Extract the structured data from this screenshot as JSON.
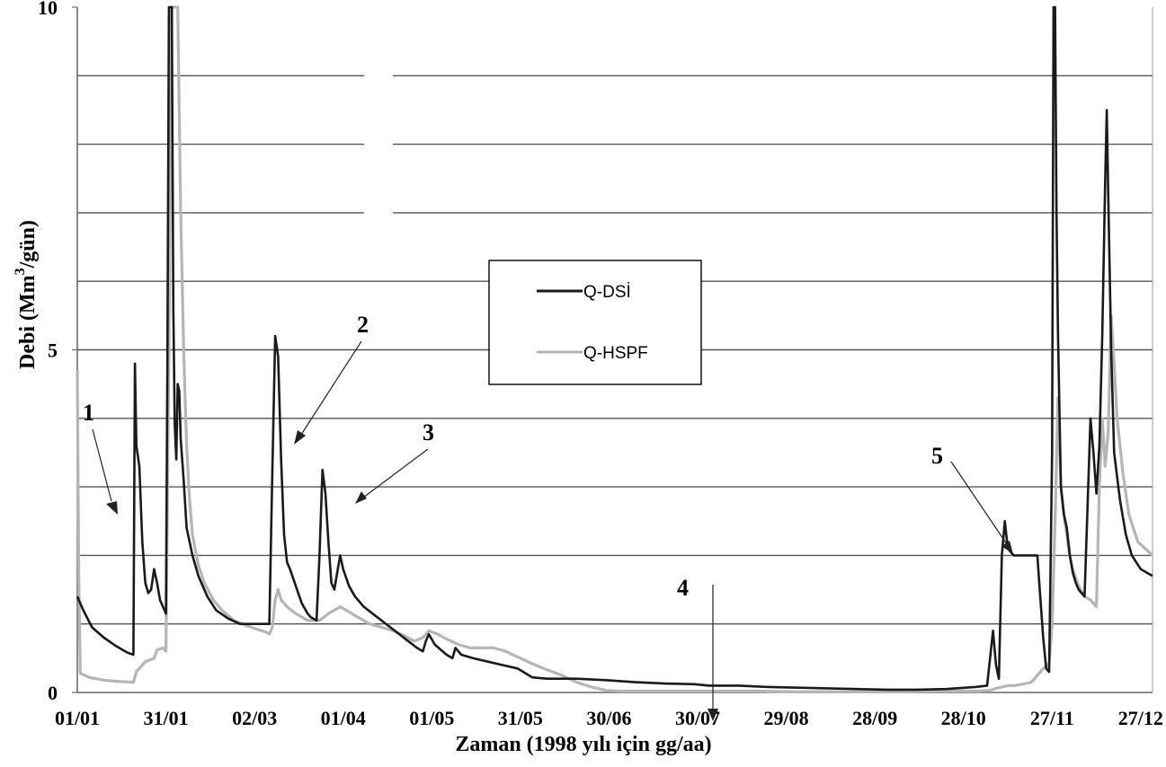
{
  "chart_data": {
    "type": "line",
    "title": "",
    "xlabel": "Zaman (1998 yılı için gg/aa)",
    "ylabel_main": "Debi (Mm",
    "ylabel_sup": "3",
    "ylabel_tail": "/gün)",
    "xlim": [
      1,
      365
    ],
    "ylim": [
      0,
      10
    ],
    "grid": true,
    "legend_position": "center",
    "y_ticks": [
      {
        "value": 0,
        "label": "0"
      },
      {
        "value": 5,
        "label": "5"
      },
      {
        "value": 10,
        "label": "10"
      }
    ],
    "y_gridlines": [
      1,
      2,
      3,
      4,
      5,
      6,
      7,
      8,
      9
    ],
    "x_ticks": [
      {
        "day": 1,
        "label": "01/01"
      },
      {
        "day": 31,
        "label": "31/01"
      },
      {
        "day": 61,
        "label": "02/03"
      },
      {
        "day": 91,
        "label": "01/04"
      },
      {
        "day": 121,
        "label": "01/05"
      },
      {
        "day": 151,
        "label": "31/05"
      },
      {
        "day": 181,
        "label": "30/06"
      },
      {
        "day": 211,
        "label": "30/07"
      },
      {
        "day": 241,
        "label": "29/08"
      },
      {
        "day": 271,
        "label": "28/09"
      },
      {
        "day": 301,
        "label": "28/10"
      },
      {
        "day": 331,
        "label": "27/11"
      },
      {
        "day": 361,
        "label": "27/12"
      }
    ],
    "series": [
      {
        "name": "Q-DSİ",
        "color": "#1a1a1a",
        "points": [
          [
            1,
            1.4
          ],
          [
            3,
            1.2
          ],
          [
            6,
            0.95
          ],
          [
            10,
            0.8
          ],
          [
            14,
            0.68
          ],
          [
            18,
            0.58
          ],
          [
            20,
            0.55
          ],
          [
            20.5,
            4.8
          ],
          [
            21,
            3.6
          ],
          [
            22,
            3.3
          ],
          [
            23,
            2.2
          ],
          [
            24,
            1.6
          ],
          [
            25,
            1.45
          ],
          [
            26,
            1.5
          ],
          [
            27,
            1.8
          ],
          [
            28,
            1.6
          ],
          [
            29,
            1.35
          ],
          [
            30,
            1.25
          ],
          [
            31,
            1.15
          ],
          [
            31.5,
            4.8
          ],
          [
            32,
            10
          ],
          [
            33,
            10
          ],
          [
            33.5,
            5.6
          ],
          [
            34,
            3.9
          ],
          [
            34.5,
            3.4
          ],
          [
            35,
            4.5
          ],
          [
            35.5,
            4.4
          ],
          [
            36,
            3.7
          ],
          [
            37,
            3.1
          ],
          [
            38,
            2.4
          ],
          [
            40,
            2.0
          ],
          [
            42,
            1.7
          ],
          [
            45,
            1.4
          ],
          [
            48,
            1.2
          ],
          [
            52,
            1.08
          ],
          [
            56,
            1.0
          ],
          [
            60,
            1.0
          ],
          [
            62,
            1.0
          ],
          [
            66,
            1.0
          ],
          [
            67,
            3.2
          ],
          [
            68,
            5.2
          ],
          [
            69,
            4.9
          ],
          [
            70,
            3.4
          ],
          [
            71,
            2.3
          ],
          [
            72,
            1.9
          ],
          [
            73,
            1.8
          ],
          [
            75,
            1.55
          ],
          [
            77,
            1.3
          ],
          [
            79,
            1.15
          ],
          [
            80,
            1.1
          ],
          [
            82,
            1.05
          ],
          [
            83,
            2.0
          ],
          [
            84,
            3.25
          ],
          [
            85,
            2.9
          ],
          [
            86,
            2.2
          ],
          [
            87,
            1.6
          ],
          [
            88,
            1.5
          ],
          [
            89,
            1.75
          ],
          [
            90,
            2.0
          ],
          [
            91,
            1.8
          ],
          [
            93,
            1.55
          ],
          [
            95,
            1.4
          ],
          [
            98,
            1.25
          ],
          [
            101,
            1.15
          ],
          [
            104,
            1.05
          ],
          [
            107,
            0.95
          ],
          [
            110,
            0.85
          ],
          [
            113,
            0.75
          ],
          [
            116,
            0.65
          ],
          [
            118,
            0.6
          ],
          [
            119,
            0.75
          ],
          [
            120,
            0.85
          ],
          [
            122,
            0.7
          ],
          [
            126,
            0.55
          ],
          [
            128,
            0.5
          ],
          [
            129,
            0.65
          ],
          [
            131,
            0.55
          ],
          [
            135,
            0.5
          ],
          [
            140,
            0.45
          ],
          [
            145,
            0.4
          ],
          [
            150,
            0.35
          ],
          [
            152,
            0.3
          ],
          [
            155,
            0.22
          ],
          [
            160,
            0.2
          ],
          [
            170,
            0.2
          ],
          [
            180,
            0.18
          ],
          [
            190,
            0.15
          ],
          [
            200,
            0.13
          ],
          [
            210,
            0.12
          ],
          [
            215,
            0.1
          ],
          [
            225,
            0.1
          ],
          [
            235,
            0.08
          ],
          [
            245,
            0.07
          ],
          [
            255,
            0.06
          ],
          [
            265,
            0.05
          ],
          [
            275,
            0.04
          ],
          [
            285,
            0.04
          ],
          [
            295,
            0.05
          ],
          [
            305,
            0.08
          ],
          [
            309,
            0.1
          ],
          [
            310,
            0.5
          ],
          [
            311,
            0.9
          ],
          [
            312,
            0.4
          ],
          [
            313,
            0.2
          ],
          [
            314,
            2.0
          ],
          [
            315,
            2.5
          ],
          [
            316,
            2.1
          ],
          [
            318,
            2.0
          ],
          [
            322,
            2.0
          ],
          [
            326,
            2.0
          ],
          [
            327,
            1.4
          ],
          [
            328,
            0.8
          ],
          [
            329,
            0.35
          ],
          [
            330,
            0.3
          ],
          [
            331,
            3.5
          ],
          [
            331.5,
            10
          ],
          [
            332,
            10
          ],
          [
            332.5,
            7.0
          ],
          [
            333,
            5.2
          ],
          [
            334,
            3.0
          ],
          [
            335,
            2.6
          ],
          [
            336,
            2.4
          ],
          [
            337,
            2.0
          ],
          [
            338,
            1.75
          ],
          [
            339,
            1.6
          ],
          [
            340,
            1.5
          ],
          [
            341,
            1.45
          ],
          [
            342,
            1.4
          ],
          [
            343,
            2.7
          ],
          [
            344,
            4.0
          ],
          [
            345,
            3.5
          ],
          [
            346,
            2.9
          ],
          [
            347,
            3.6
          ],
          [
            348,
            5.2
          ],
          [
            349,
            7.5
          ],
          [
            349.5,
            8.5
          ],
          [
            350,
            7.3
          ],
          [
            351,
            5.0
          ],
          [
            352,
            3.5
          ],
          [
            354,
            2.8
          ],
          [
            356,
            2.3
          ],
          [
            358,
            2.0
          ],
          [
            361,
            1.8
          ],
          [
            365,
            1.7
          ]
        ]
      },
      {
        "name": "Q-HSPF",
        "color": "#b5b5b5",
        "points": [
          [
            1,
            4.7
          ],
          [
            1.5,
            1.7
          ],
          [
            2,
            0.28
          ],
          [
            5,
            0.22
          ],
          [
            10,
            0.18
          ],
          [
            15,
            0.16
          ],
          [
            20,
            0.15
          ],
          [
            21,
            0.3
          ],
          [
            24,
            0.45
          ],
          [
            27,
            0.5
          ],
          [
            28,
            0.62
          ],
          [
            30,
            0.65
          ],
          [
            31,
            0.6
          ],
          [
            32,
            5.0
          ],
          [
            33,
            10
          ],
          [
            34,
            10
          ],
          [
            35,
            10
          ],
          [
            36,
            7.0
          ],
          [
            37,
            5.0
          ],
          [
            38,
            3.6
          ],
          [
            39,
            2.8
          ],
          [
            40,
            2.3
          ],
          [
            42,
            1.85
          ],
          [
            44,
            1.6
          ],
          [
            47,
            1.35
          ],
          [
            50,
            1.2
          ],
          [
            54,
            1.05
          ],
          [
            58,
            0.98
          ],
          [
            62,
            0.92
          ],
          [
            65,
            0.88
          ],
          [
            66,
            0.85
          ],
          [
            67,
            0.95
          ],
          [
            68,
            1.35
          ],
          [
            69,
            1.5
          ],
          [
            70,
            1.35
          ],
          [
            72,
            1.25
          ],
          [
            75,
            1.15
          ],
          [
            79,
            1.05
          ],
          [
            83,
            1.05
          ],
          [
            86,
            1.15
          ],
          [
            88,
            1.2
          ],
          [
            90,
            1.25
          ],
          [
            92,
            1.2
          ],
          [
            96,
            1.1
          ],
          [
            100,
            1.0
          ],
          [
            104,
            0.95
          ],
          [
            108,
            0.9
          ],
          [
            112,
            0.82
          ],
          [
            115,
            0.75
          ],
          [
            118,
            0.8
          ],
          [
            120,
            0.9
          ],
          [
            123,
            0.85
          ],
          [
            126,
            0.78
          ],
          [
            130,
            0.7
          ],
          [
            134,
            0.65
          ],
          [
            138,
            0.65
          ],
          [
            142,
            0.65
          ],
          [
            146,
            0.6
          ],
          [
            150,
            0.52
          ],
          [
            155,
            0.42
          ],
          [
            160,
            0.33
          ],
          [
            165,
            0.25
          ],
          [
            170,
            0.15
          ],
          [
            175,
            0.08
          ],
          [
            180,
            0.03
          ],
          [
            185,
            0.02
          ],
          [
            200,
            0.02
          ],
          [
            215,
            0.02
          ],
          [
            230,
            0.02
          ],
          [
            245,
            0.01
          ],
          [
            260,
            0.01
          ],
          [
            275,
            0.01
          ],
          [
            290,
            0.02
          ],
          [
            300,
            0.02
          ],
          [
            306,
            0.02
          ],
          [
            310,
            0.03
          ],
          [
            312,
            0.06
          ],
          [
            314,
            0.08
          ],
          [
            316,
            0.1
          ],
          [
            318,
            0.1
          ],
          [
            321,
            0.12
          ],
          [
            324,
            0.15
          ],
          [
            326,
            0.25
          ],
          [
            328,
            0.35
          ],
          [
            330,
            0.42
          ],
          [
            331,
            1.0
          ],
          [
            332,
            2.5
          ],
          [
            333,
            4.3
          ],
          [
            334,
            3.0
          ],
          [
            335,
            2.6
          ],
          [
            336,
            2.3
          ],
          [
            337,
            2.0
          ],
          [
            338,
            1.8
          ],
          [
            340,
            1.55
          ],
          [
            342,
            1.4
          ],
          [
            344,
            1.35
          ],
          [
            345,
            1.3
          ],
          [
            346,
            1.25
          ],
          [
            347,
            3.0
          ],
          [
            348,
            4.0
          ],
          [
            349,
            3.3
          ],
          [
            350,
            3.8
          ],
          [
            351,
            5.5
          ],
          [
            352,
            4.8
          ],
          [
            353,
            4.0
          ],
          [
            355,
            3.2
          ],
          [
            357,
            2.6
          ],
          [
            360,
            2.2
          ],
          [
            365,
            2.0
          ]
        ]
      }
    ],
    "annotations": [
      {
        "label": "1"
      },
      {
        "label": "2"
      },
      {
        "label": "3"
      },
      {
        "label": "4"
      },
      {
        "label": "5"
      }
    ]
  }
}
